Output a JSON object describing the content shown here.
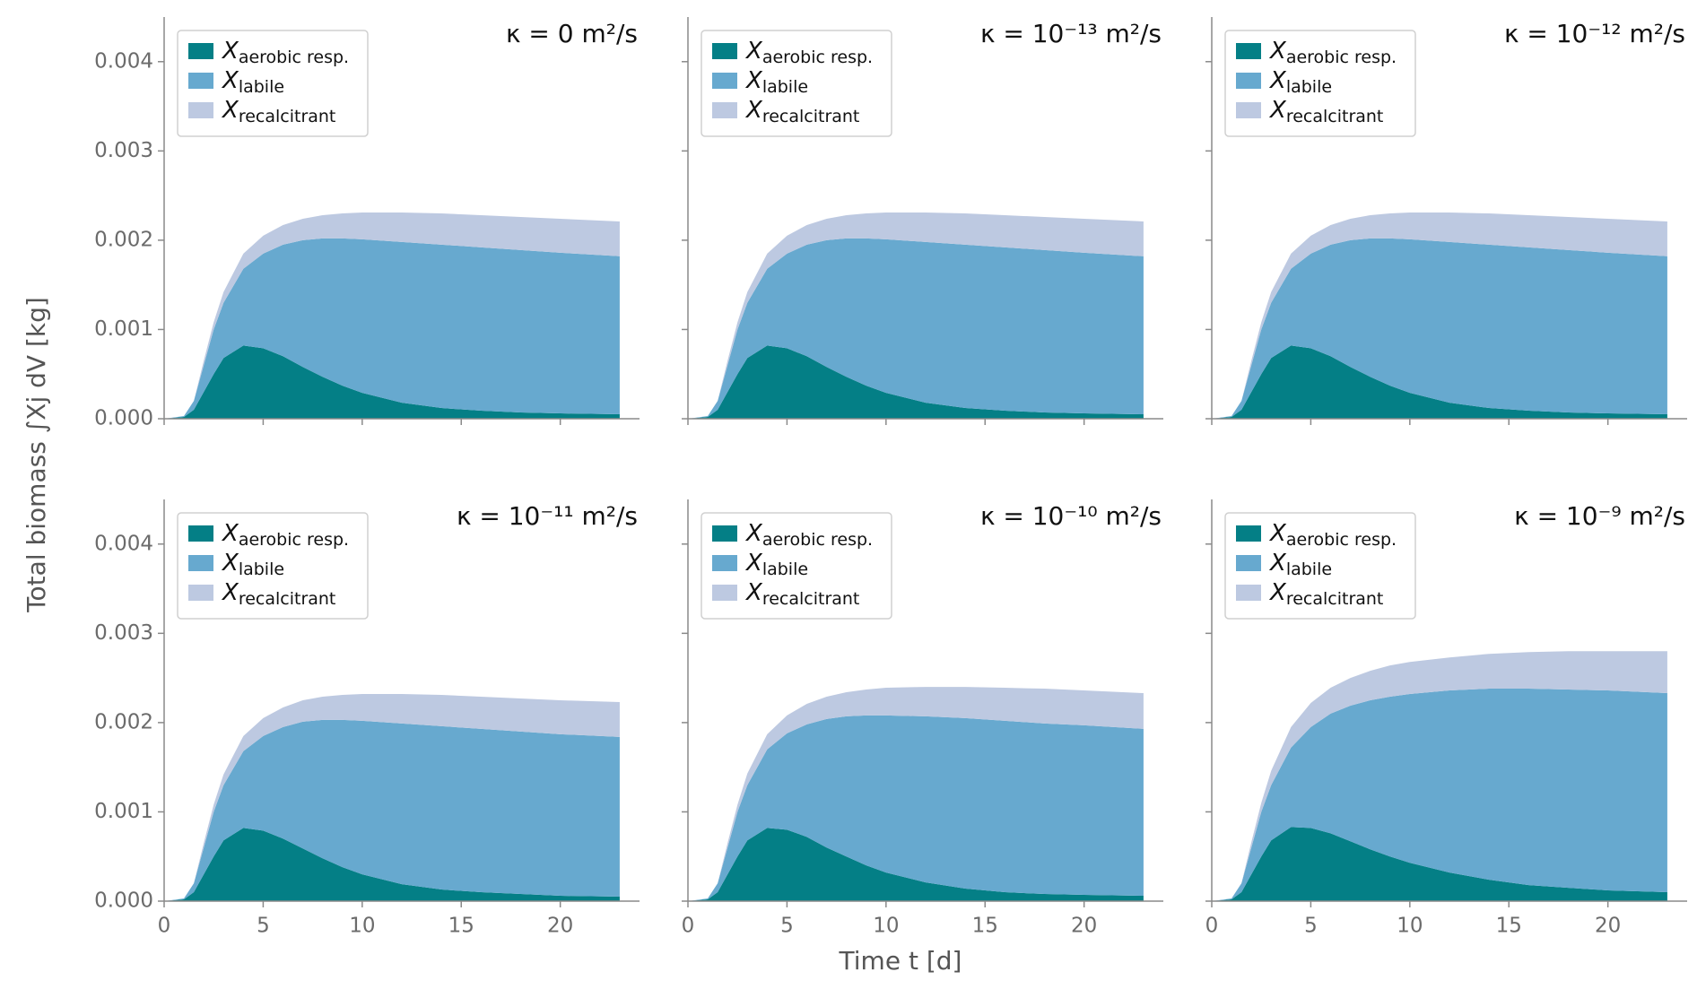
{
  "xlabel": "Time t [d]",
  "ylabel": "Total biomass ∫Xj dV [kg]",
  "chart_data": [
    {
      "type": "area",
      "stacked": true,
      "title": "κ = 0 m²/s",
      "legend": "upper left",
      "x": [
        0,
        1,
        1.5,
        2,
        2.5,
        3,
        4,
        5,
        6,
        7,
        8,
        9,
        10,
        12,
        14,
        16,
        18,
        20,
        23
      ],
      "series": [
        {
          "name": "Xaerobic resp.",
          "color": "#047f86",
          "values": [
            0,
            2e-05,
            0.0001,
            0.0003,
            0.0005,
            0.00068,
            0.00082,
            0.00079,
            0.0007,
            0.00058,
            0.00047,
            0.00037,
            0.00029,
            0.00018,
            0.00012,
            9e-05,
            7e-05,
            6e-05,
            5e-05
          ]
        },
        {
          "name": "Xlabile",
          "color": "#67a9cf",
          "values": [
            0,
            1e-05,
            0.0001,
            0.0003,
            0.0005,
            0.00062,
            0.00086,
            0.00106,
            0.00125,
            0.00142,
            0.00155,
            0.00165,
            0.00172,
            0.0018,
            0.00183,
            0.00183,
            0.00182,
            0.0018,
            0.00177
          ]
        },
        {
          "name": "Xrecalcitrant",
          "color": "#bdc9e1",
          "values": [
            0,
            0,
            0,
            5e-05,
            8e-05,
            0.00012,
            0.00017,
            0.0002,
            0.00022,
            0.00024,
            0.00026,
            0.00028,
            0.0003,
            0.00033,
            0.00035,
            0.00036,
            0.00037,
            0.00038,
            0.00039
          ]
        }
      ],
      "xlim": [
        0,
        24
      ],
      "xticks": [
        0,
        5,
        10,
        15,
        20
      ],
      "ylim": [
        0,
        0.0045
      ],
      "yticks": [
        {
          "value": 0,
          "label": "0.000"
        },
        {
          "value": 0.001,
          "label": "0.001"
        },
        {
          "value": 0.002,
          "label": "0.002"
        },
        {
          "value": 0.003,
          "label": "0.003"
        },
        {
          "value": 0.004,
          "label": "0.004"
        }
      ]
    },
    {
      "type": "area",
      "stacked": true,
      "title": "κ = 10⁻¹³ m²/s",
      "legend": "upper left",
      "x": [
        0,
        1,
        1.5,
        2,
        2.5,
        3,
        4,
        5,
        6,
        7,
        8,
        9,
        10,
        12,
        14,
        16,
        18,
        20,
        23
      ],
      "series": [
        {
          "name": "Xaerobic resp.",
          "color": "#047f86",
          "values": [
            0,
            2e-05,
            0.0001,
            0.0003,
            0.0005,
            0.00068,
            0.00082,
            0.00079,
            0.0007,
            0.00058,
            0.00047,
            0.00037,
            0.00029,
            0.00018,
            0.00012,
            9e-05,
            7e-05,
            6e-05,
            5e-05
          ]
        },
        {
          "name": "Xlabile",
          "color": "#67a9cf",
          "values": [
            0,
            1e-05,
            0.0001,
            0.0003,
            0.0005,
            0.00062,
            0.00086,
            0.00106,
            0.00125,
            0.00142,
            0.00155,
            0.00165,
            0.00172,
            0.0018,
            0.00183,
            0.00183,
            0.00182,
            0.0018,
            0.00177
          ]
        },
        {
          "name": "Xrecalcitrant",
          "color": "#bdc9e1",
          "values": [
            0,
            0,
            0,
            5e-05,
            8e-05,
            0.00012,
            0.00017,
            0.0002,
            0.00022,
            0.00024,
            0.00026,
            0.00028,
            0.0003,
            0.00033,
            0.00035,
            0.00036,
            0.00037,
            0.00038,
            0.00039
          ]
        }
      ],
      "xlim": [
        0,
        24
      ],
      "xticks": [
        0,
        5,
        10,
        15,
        20
      ],
      "ylim": [
        0,
        0.0045
      ],
      "yticks": [
        {
          "value": 0,
          "label": "0.000"
        },
        {
          "value": 0.001,
          "label": "0.001"
        },
        {
          "value": 0.002,
          "label": "0.002"
        },
        {
          "value": 0.003,
          "label": "0.003"
        },
        {
          "value": 0.004,
          "label": "0.004"
        }
      ]
    },
    {
      "type": "area",
      "stacked": true,
      "title": "κ = 10⁻¹² m²/s",
      "legend": "upper left",
      "x": [
        0,
        1,
        1.5,
        2,
        2.5,
        3,
        4,
        5,
        6,
        7,
        8,
        9,
        10,
        12,
        14,
        16,
        18,
        20,
        23
      ],
      "series": [
        {
          "name": "Xaerobic resp.",
          "color": "#047f86",
          "values": [
            0,
            2e-05,
            0.0001,
            0.0003,
            0.0005,
            0.00068,
            0.00082,
            0.00079,
            0.0007,
            0.00058,
            0.00047,
            0.00037,
            0.00029,
            0.00018,
            0.00012,
            9e-05,
            7e-05,
            6e-05,
            5e-05
          ]
        },
        {
          "name": "Xlabile",
          "color": "#67a9cf",
          "values": [
            0,
            1e-05,
            0.0001,
            0.0003,
            0.0005,
            0.00062,
            0.00086,
            0.00106,
            0.00125,
            0.00142,
            0.00155,
            0.00165,
            0.00172,
            0.0018,
            0.00183,
            0.00183,
            0.00182,
            0.0018,
            0.00177
          ]
        },
        {
          "name": "Xrecalcitrant",
          "color": "#bdc9e1",
          "values": [
            0,
            0,
            0,
            5e-05,
            8e-05,
            0.00012,
            0.00017,
            0.0002,
            0.00022,
            0.00024,
            0.00026,
            0.00028,
            0.0003,
            0.00033,
            0.00035,
            0.00036,
            0.00037,
            0.00038,
            0.00039
          ]
        }
      ],
      "xlim": [
        0,
        24
      ],
      "xticks": [
        0,
        5,
        10,
        15,
        20
      ],
      "ylim": [
        0,
        0.0045
      ],
      "yticks": [
        {
          "value": 0,
          "label": "0.000"
        },
        {
          "value": 0.001,
          "label": "0.001"
        },
        {
          "value": 0.002,
          "label": "0.002"
        },
        {
          "value": 0.003,
          "label": "0.003"
        },
        {
          "value": 0.004,
          "label": "0.004"
        }
      ]
    },
    {
      "type": "area",
      "stacked": true,
      "title": "κ = 10⁻¹¹ m²/s",
      "legend": "upper left",
      "x": [
        0,
        1,
        1.5,
        2,
        2.5,
        3,
        4,
        5,
        6,
        7,
        8,
        9,
        10,
        12,
        14,
        16,
        18,
        20,
        23
      ],
      "series": [
        {
          "name": "Xaerobic resp.",
          "color": "#047f86",
          "values": [
            0,
            2e-05,
            0.0001,
            0.0003,
            0.0005,
            0.00068,
            0.00082,
            0.00079,
            0.0007,
            0.00059,
            0.00048,
            0.00038,
            0.0003,
            0.00019,
            0.00013,
            0.0001,
            8e-05,
            6e-05,
            5e-05
          ]
        },
        {
          "name": "Xlabile",
          "color": "#67a9cf",
          "values": [
            0,
            1e-05,
            0.0001,
            0.0003,
            0.0005,
            0.00062,
            0.00086,
            0.00106,
            0.00125,
            0.00142,
            0.00155,
            0.00165,
            0.00172,
            0.0018,
            0.00183,
            0.00183,
            0.00182,
            0.00181,
            0.00179
          ]
        },
        {
          "name": "Xrecalcitrant",
          "color": "#bdc9e1",
          "values": [
            0,
            0,
            0,
            5e-05,
            8e-05,
            0.00012,
            0.00017,
            0.0002,
            0.00022,
            0.00024,
            0.00026,
            0.00028,
            0.0003,
            0.00033,
            0.00035,
            0.00036,
            0.00037,
            0.00038,
            0.00039
          ]
        }
      ],
      "xlim": [
        0,
        24
      ],
      "xticks": [
        0,
        5,
        10,
        15,
        20
      ],
      "ylim": [
        0,
        0.0045
      ],
      "yticks": [
        {
          "value": 0,
          "label": "0.000"
        },
        {
          "value": 0.001,
          "label": "0.001"
        },
        {
          "value": 0.002,
          "label": "0.002"
        },
        {
          "value": 0.003,
          "label": "0.003"
        },
        {
          "value": 0.004,
          "label": "0.004"
        }
      ]
    },
    {
      "type": "area",
      "stacked": true,
      "title": "κ = 10⁻¹⁰ m²/s",
      "legend": "upper left",
      "x": [
        0,
        1,
        1.5,
        2,
        2.5,
        3,
        4,
        5,
        6,
        7,
        8,
        9,
        10,
        12,
        14,
        16,
        18,
        20,
        23
      ],
      "series": [
        {
          "name": "Xaerobic resp.",
          "color": "#047f86",
          "values": [
            0,
            2e-05,
            0.0001,
            0.0003,
            0.0005,
            0.00068,
            0.00082,
            0.0008,
            0.00072,
            0.0006,
            0.0005,
            0.0004,
            0.00032,
            0.00021,
            0.00014,
            0.0001,
            8e-05,
            7e-05,
            6e-05
          ]
        },
        {
          "name": "Xlabile",
          "color": "#67a9cf",
          "values": [
            0,
            1e-05,
            0.0001,
            0.0003,
            0.0005,
            0.00062,
            0.00088,
            0.00108,
            0.00126,
            0.00144,
            0.00157,
            0.00168,
            0.00176,
            0.00186,
            0.00191,
            0.00192,
            0.00191,
            0.0019,
            0.00187
          ]
        },
        {
          "name": "Xrecalcitrant",
          "color": "#bdc9e1",
          "values": [
            0,
            0,
            0,
            5e-05,
            8e-05,
            0.00013,
            0.00017,
            0.0002,
            0.00023,
            0.00025,
            0.00027,
            0.00029,
            0.00031,
            0.00033,
            0.00035,
            0.00037,
            0.00039,
            0.00039,
            0.0004
          ]
        }
      ],
      "xlim": [
        0,
        24
      ],
      "xticks": [
        0,
        5,
        10,
        15,
        20
      ],
      "ylim": [
        0,
        0.0045
      ],
      "yticks": [
        {
          "value": 0,
          "label": "0.000"
        },
        {
          "value": 0.001,
          "label": "0.001"
        },
        {
          "value": 0.002,
          "label": "0.002"
        },
        {
          "value": 0.003,
          "label": "0.003"
        },
        {
          "value": 0.004,
          "label": "0.004"
        }
      ]
    },
    {
      "type": "area",
      "stacked": true,
      "title": "κ = 10⁻⁹ m²/s",
      "legend": "upper left",
      "x": [
        0,
        1,
        1.5,
        2,
        2.5,
        3,
        4,
        5,
        6,
        7,
        8,
        9,
        10,
        12,
        14,
        16,
        18,
        20,
        23
      ],
      "series": [
        {
          "name": "Xaerobic resp.",
          "color": "#047f86",
          "values": [
            0,
            2e-05,
            0.0001,
            0.0003,
            0.0005,
            0.00068,
            0.00083,
            0.00082,
            0.00076,
            0.00067,
            0.00058,
            0.0005,
            0.00043,
            0.00032,
            0.00024,
            0.00018,
            0.00015,
            0.00012,
            0.0001
          ]
        },
        {
          "name": "Xlabile",
          "color": "#67a9cf",
          "values": [
            0,
            1e-05,
            0.0001,
            0.0003,
            0.0005,
            0.00062,
            0.00089,
            0.00113,
            0.00134,
            0.00152,
            0.00167,
            0.00179,
            0.00189,
            0.00204,
            0.00214,
            0.0022,
            0.00222,
            0.00224,
            0.00223
          ]
        },
        {
          "name": "Xrecalcitrant",
          "color": "#bdc9e1",
          "values": [
            0,
            0,
            0,
            6e-05,
            0.0001,
            0.00016,
            0.00023,
            0.00027,
            0.00029,
            0.00031,
            0.00033,
            0.00035,
            0.00036,
            0.00037,
            0.00039,
            0.00041,
            0.00043,
            0.00044,
            0.00047
          ]
        }
      ],
      "xlim": [
        0,
        24
      ],
      "xticks": [
        0,
        5,
        10,
        15,
        20
      ],
      "ylim": [
        0,
        0.0045
      ],
      "yticks": [
        {
          "value": 0,
          "label": "0.000"
        },
        {
          "value": 0.001,
          "label": "0.001"
        },
        {
          "value": 0.002,
          "label": "0.002"
        },
        {
          "value": 0.003,
          "label": "0.003"
        },
        {
          "value": 0.004,
          "label": "0.004"
        }
      ]
    }
  ]
}
